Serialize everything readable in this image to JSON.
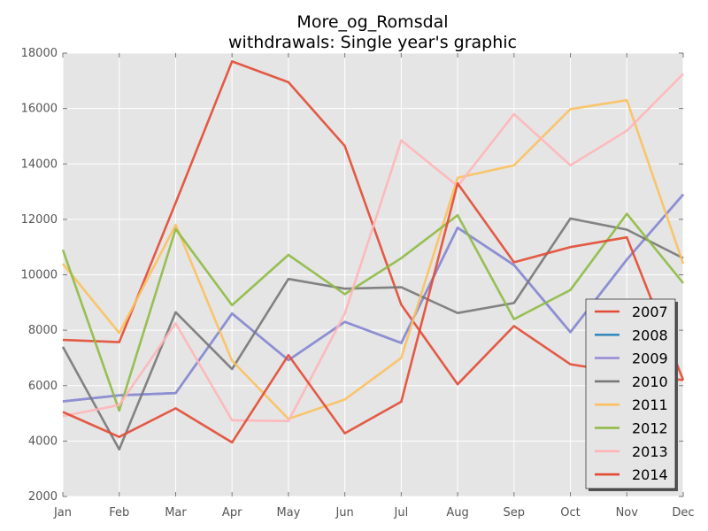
{
  "chart_data": {
    "type": "line",
    "title_line1": "More_og_Romsdal",
    "title_line2": "withdrawals: Single year's graphic",
    "xlabel": "",
    "ylabel": "",
    "categories": [
      "Jan",
      "Feb",
      "Mar",
      "Apr",
      "May",
      "Jun",
      "Jul",
      "Aug",
      "Sep",
      "Oct",
      "Nov",
      "Dec"
    ],
    "ylim": [
      2000,
      18000
    ],
    "yticks": [
      2000,
      4000,
      6000,
      8000,
      10000,
      12000,
      14000,
      16000,
      18000
    ],
    "grid": true,
    "legend_position": "bottom-right",
    "series": [
      {
        "name": "2007",
        "color": "#E24A33",
        "values": [
          7650,
          7570,
          12600,
          17700,
          16950,
          14650,
          8920,
          6050,
          8150,
          6770,
          6450,
          6200
        ]
      },
      {
        "name": "2008",
        "color": "#348ABD",
        "values": [
          5430,
          5650,
          5730,
          8600,
          6920,
          8300,
          7540,
          11700,
          10350,
          7930,
          10550,
          12900
        ]
      },
      {
        "name": "2009",
        "color": "#988ED5",
        "values": [
          5430,
          5650,
          5730,
          8600,
          6920,
          8300,
          7540,
          11700,
          10350,
          7930,
          10550,
          12900
        ]
      },
      {
        "name": "2010",
        "color": "#777777",
        "values": [
          7400,
          3700,
          8650,
          6600,
          9850,
          9500,
          9550,
          8620,
          8980,
          12030,
          11630,
          10600
        ]
      },
      {
        "name": "2011",
        "color": "#FBC15E",
        "values": [
          10400,
          7900,
          11800,
          6900,
          4800,
          5500,
          7000,
          13500,
          13950,
          15980,
          16300,
          10400
        ]
      },
      {
        "name": "2012",
        "color": "#8EBA42",
        "values": [
          10900,
          5100,
          11650,
          8900,
          10720,
          9300,
          10600,
          12150,
          8400,
          9450,
          12200,
          9700
        ]
      },
      {
        "name": "2013",
        "color": "#FFB5B8",
        "values": [
          4900,
          5300,
          8250,
          4750,
          4720,
          8600,
          14850,
          13200,
          15800,
          13950,
          15200,
          17250
        ]
      },
      {
        "name": "2014",
        "color": "#E24A33",
        "values": [
          5050,
          4150,
          5180,
          3950,
          7100,
          4280,
          5420,
          13300,
          10450,
          11000,
          11350,
          6200
        ]
      }
    ]
  }
}
